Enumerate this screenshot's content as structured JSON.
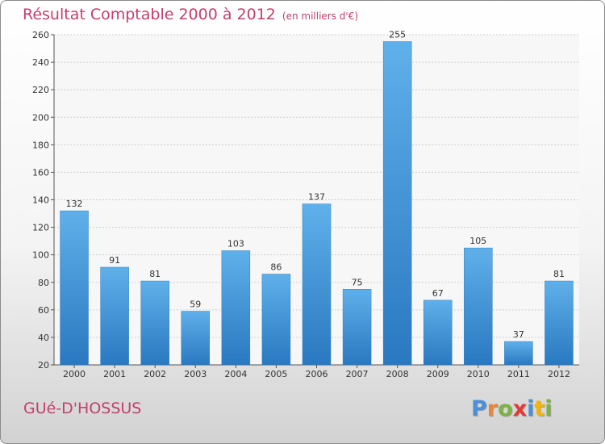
{
  "header": {
    "title": "Résultat Comptable 2000 à 2012",
    "subtitle": "(en milliers d'€)"
  },
  "footer": {
    "place": "GUé-D'HOSSUS",
    "logo_letters": [
      {
        "ch": "P",
        "color": "#4d8fd6"
      },
      {
        "ch": "r",
        "color": "#e8863a"
      },
      {
        "ch": "o",
        "color": "#7cb342"
      },
      {
        "ch": "x",
        "color": "#e53935"
      },
      {
        "ch": "i",
        "color": "#4d8fd6"
      },
      {
        "ch": "t",
        "color": "#f4b400"
      },
      {
        "ch": "i",
        "color": "#7cb342"
      }
    ]
  },
  "colors": {
    "bar_top": "#5fb0ea",
    "bar_bottom": "#2a78c0",
    "accent": "#c4406a"
  },
  "chart_data": {
    "type": "bar",
    "categories": [
      "2000",
      "2001",
      "2002",
      "2003",
      "2004",
      "2005",
      "2006",
      "2007",
      "2008",
      "2009",
      "2010",
      "2011",
      "2012"
    ],
    "values": [
      132,
      91,
      81,
      59,
      103,
      86,
      137,
      75,
      255,
      67,
      105,
      37,
      81
    ],
    "title": "Résultat Comptable 2000 à 2012",
    "subtitle": "(en milliers d'€)",
    "xlabel": "",
    "ylabel": "",
    "ylim": [
      20,
      260
    ],
    "yticks": [
      20,
      40,
      60,
      80,
      100,
      120,
      140,
      160,
      180,
      200,
      220,
      240,
      260
    ],
    "grid": true,
    "legend": "none"
  }
}
